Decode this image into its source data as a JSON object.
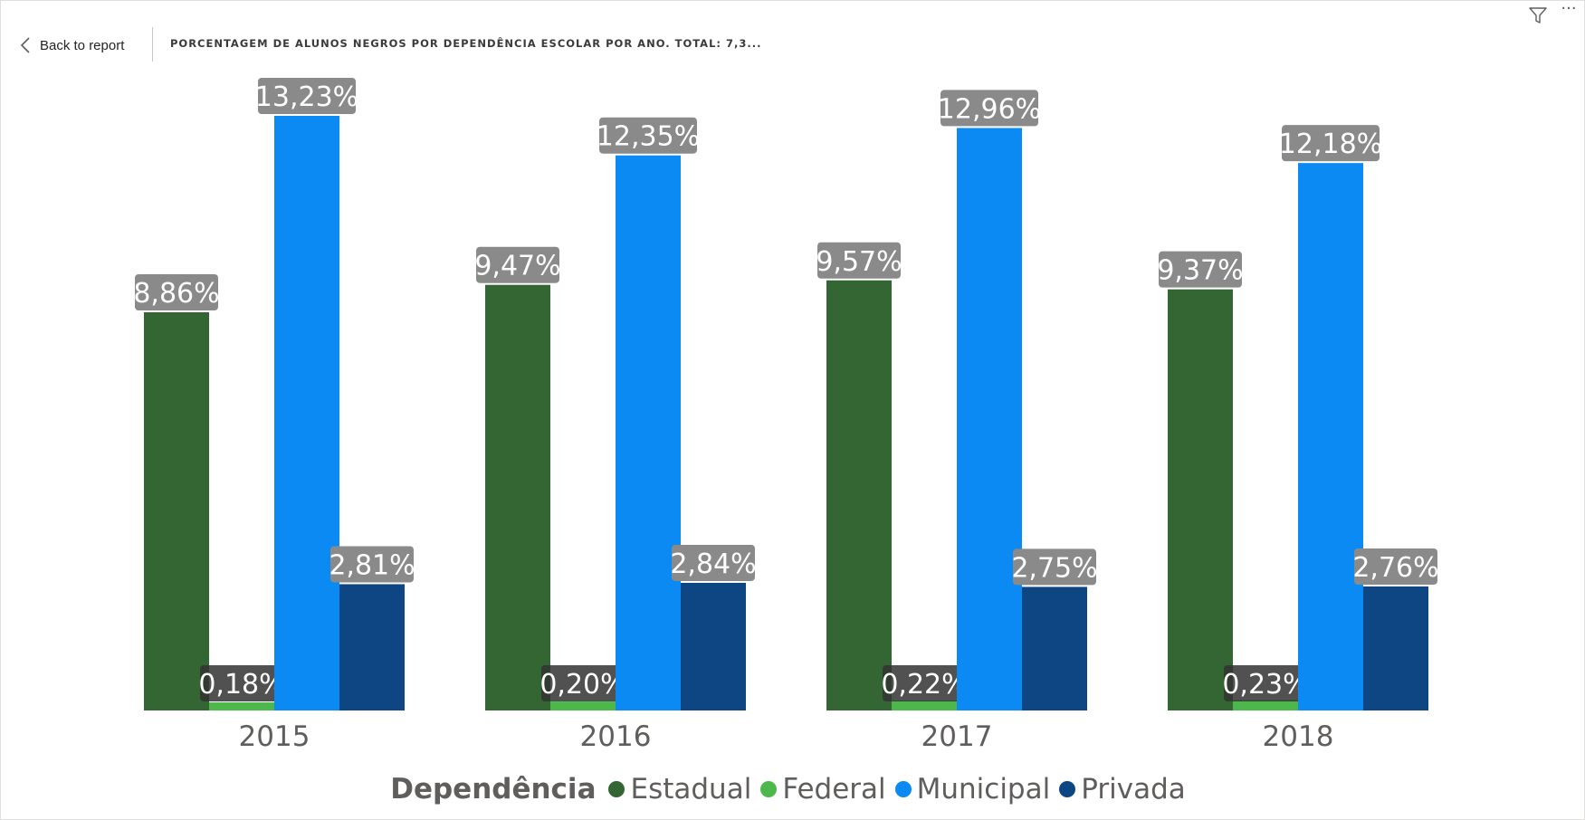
{
  "header": {
    "back_label": "Back to report",
    "title": "PORCENTAGEM DE ALUNOS NEGROS POR DEPENDÊNCIA ESCOLAR POR ANO. TOTAL: 7,3..."
  },
  "icons": {
    "back": "chevron-left-icon",
    "filter": "filter-icon",
    "more": "more-options-icon"
  },
  "legend": {
    "title": "Dependência",
    "items": [
      {
        "label": "Estadual",
        "color": "#336633"
      },
      {
        "label": "Federal",
        "color": "#4cb84c"
      },
      {
        "label": "Municipal",
        "color": "#0a8af2"
      },
      {
        "label": "Privada",
        "color": "#0d4683"
      }
    ]
  },
  "chart_data": {
    "type": "bar",
    "categories": [
      "2015",
      "2016",
      "2017",
      "2018"
    ],
    "series": [
      {
        "name": "Estadual",
        "color": "#336633",
        "values": [
          8.86,
          9.47,
          9.57,
          9.37
        ],
        "labels": [
          "8,86%",
          "9,47%",
          "9,57%",
          "9,37%"
        ]
      },
      {
        "name": "Federal",
        "color": "#4cb84c",
        "values": [
          0.18,
          0.2,
          0.22,
          0.23
        ],
        "labels": [
          "0,18%",
          "0,20%",
          "0,22%",
          "0,23%"
        ]
      },
      {
        "name": "Municipal",
        "color": "#0a8af2",
        "values": [
          13.23,
          12.35,
          12.96,
          12.18
        ],
        "labels": [
          "13,23%",
          "12,35%",
          "12,96%",
          "12,18%"
        ]
      },
      {
        "name": "Privada",
        "color": "#0d4683",
        "values": [
          2.81,
          2.84,
          2.75,
          2.76
        ],
        "labels": [
          "2,81%",
          "2,84%",
          "2,75%",
          "2,76%"
        ]
      }
    ],
    "ylim": [
      0,
      13.23
    ],
    "grid": false,
    "legend_position": "bottom",
    "data_label_background": "#8a8a8a"
  }
}
